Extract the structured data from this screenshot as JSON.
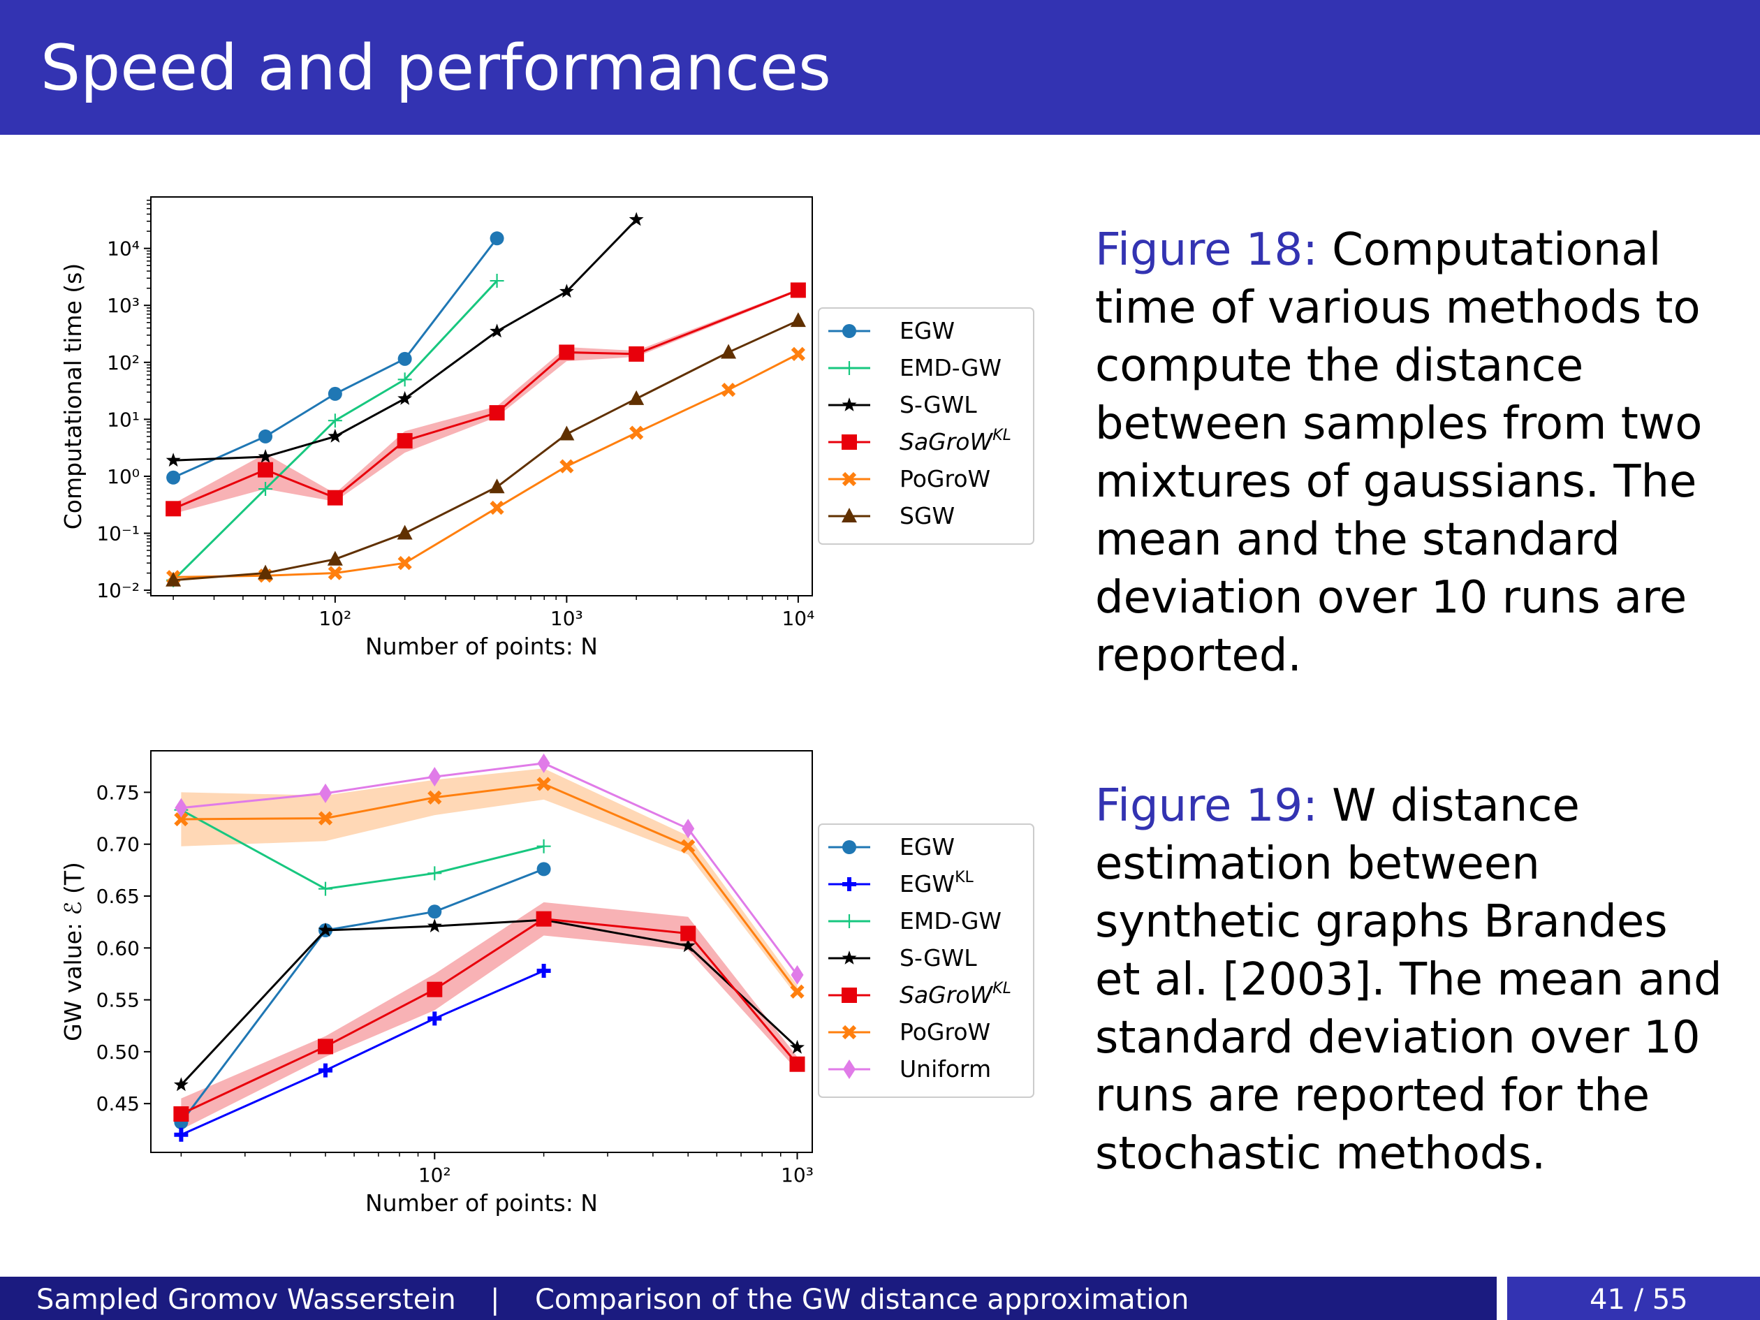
{
  "slide": {
    "title": "Speed and performances",
    "caption1_label": "Figure 18:",
    "caption1_text": "Computational time of various methods to compute the distance between samples from two mixtures of gaussians. The mean and the standard deviation over 10 runs are reported.",
    "caption2_label": "Figure 19:",
    "caption2_text": "W distance estimation between synthetic graphs Brandes et al. [2003]. The mean and standard deviation over 10 runs are reported for the stochastic methods."
  },
  "footer": {
    "left_title": "Sampled Gromov Wasserstein",
    "separator": "|",
    "section": "Comparison of the GW distance approximation",
    "page": "41 / 55"
  },
  "chart_data": [
    {
      "type": "line",
      "xlabel": "Number of points: N",
      "ylabel": "Computational time (s)",
      "x_scale": "log",
      "y_scale": "log",
      "xlim": [
        16,
        11500
      ],
      "ylim": [
        0.008,
        80000
      ],
      "x_ticks": [
        100,
        1000,
        10000
      ],
      "x_tick_labels": [
        "10²",
        "10³",
        "10⁴"
      ],
      "y_ticks": [
        0.01,
        0.1,
        1,
        10,
        100,
        1000,
        10000
      ],
      "y_tick_labels": [
        "10⁻²",
        "10⁻¹",
        "10⁰",
        "10¹",
        "10²",
        "10³",
        "10⁴"
      ],
      "legend_position": "right outside",
      "series": [
        {
          "name": "EGW",
          "color": "#1f77b4",
          "marker": "circle",
          "x": [
            20,
            50,
            100,
            200,
            500
          ],
          "y": [
            0.95,
            5,
            28,
            115,
            15000
          ]
        },
        {
          "name": "EMD-GW",
          "color": "#17c77f",
          "marker": "plus",
          "x": [
            20,
            50,
            100,
            200,
            500
          ],
          "y": [
            0.015,
            0.6,
            9.5,
            50,
            2700
          ]
        },
        {
          "name": "S-GWL",
          "color": "#000000",
          "marker": "star",
          "x": [
            20,
            50,
            100,
            200,
            500,
            1000,
            2000
          ],
          "y": [
            1.9,
            2.2,
            5,
            23,
            350,
            1750,
            32000
          ]
        },
        {
          "name": "SaGroW^KL",
          "color": "#e8000b",
          "marker": "square",
          "band": true,
          "x": [
            20,
            50,
            100,
            200,
            500,
            1000,
            2000,
            10000
          ],
          "y": [
            0.27,
            1.3,
            0.42,
            4.2,
            13,
            150,
            140,
            1850
          ],
          "y_low": [
            0.22,
            0.6,
            0.36,
            2.6,
            11,
            105,
            125,
            1750
          ],
          "y_high": [
            0.33,
            2.5,
            0.5,
            6.2,
            17,
            185,
            160,
            1950
          ]
        },
        {
          "name": "PoGroW",
          "color": "#ff7f0e",
          "marker": "x",
          "x": [
            20,
            50,
            100,
            200,
            500,
            1000,
            2000,
            5000,
            10000
          ],
          "y": [
            0.017,
            0.018,
            0.02,
            0.03,
            0.28,
            1.5,
            5.8,
            33,
            140
          ]
        },
        {
          "name": "SGW",
          "color": "#603000",
          "marker": "triangle",
          "x": [
            20,
            50,
            100,
            200,
            500,
            1000,
            2000,
            5000,
            10000
          ],
          "y": [
            0.015,
            0.02,
            0.035,
            0.1,
            0.65,
            5.5,
            23,
            150,
            540
          ]
        }
      ]
    },
    {
      "type": "line",
      "xlabel": "Number of points: N",
      "ylabel": "GW value: ℰ (T)",
      "x_scale": "log",
      "y_scale": "linear",
      "xlim": [
        16.5,
        1100
      ],
      "ylim": [
        0.403,
        0.79
      ],
      "x_ticks": [
        100,
        1000
      ],
      "x_tick_labels": [
        "10²",
        "10³"
      ],
      "y_ticks": [
        0.45,
        0.5,
        0.55,
        0.6,
        0.65,
        0.7,
        0.75
      ],
      "y_tick_labels": [
        "0.45",
        "0.50",
        "0.55",
        "0.60",
        "0.65",
        "0.70",
        "0.75"
      ],
      "legend_position": "right outside",
      "series": [
        {
          "name": "EGW",
          "color": "#1f77b4",
          "marker": "circle",
          "x": [
            20,
            50,
            100,
            200
          ],
          "y": [
            0.432,
            0.617,
            0.635,
            0.676
          ]
        },
        {
          "name": "EGW^KL",
          "color": "#0000ff",
          "marker": "plus-bold",
          "x": [
            20,
            50,
            100,
            200
          ],
          "y": [
            0.42,
            0.482,
            0.532,
            0.578
          ]
        },
        {
          "name": "EMD-GW",
          "color": "#17c77f",
          "marker": "plus",
          "x": [
            20,
            50,
            100,
            200
          ],
          "y": [
            0.733,
            0.657,
            0.672,
            0.698
          ]
        },
        {
          "name": "S-GWL",
          "color": "#000000",
          "marker": "star",
          "x": [
            20,
            50,
            100,
            200,
            500,
            1000
          ],
          "y": [
            0.468,
            0.617,
            0.621,
            0.627,
            0.602,
            0.504
          ]
        },
        {
          "name": "SaGroW^KL",
          "color": "#e8000b",
          "marker": "square",
          "band": true,
          "x": [
            20,
            50,
            100,
            200,
            500,
            1000
          ],
          "y": [
            0.44,
            0.505,
            0.56,
            0.628,
            0.614,
            0.488
          ],
          "y_low": [
            0.425,
            0.495,
            0.54,
            0.612,
            0.598,
            0.482
          ],
          "y_high": [
            0.455,
            0.515,
            0.575,
            0.644,
            0.63,
            0.495
          ]
        },
        {
          "name": "PoGroW",
          "color": "#ff7f0e",
          "marker": "x",
          "band": true,
          "x": [
            20,
            50,
            100,
            200,
            500,
            1000
          ],
          "y": [
            0.724,
            0.725,
            0.745,
            0.758,
            0.698,
            0.558
          ],
          "y_low": [
            0.698,
            0.703,
            0.728,
            0.743,
            0.69,
            0.553
          ],
          "y_high": [
            0.75,
            0.747,
            0.762,
            0.773,
            0.708,
            0.564
          ]
        },
        {
          "name": "Uniform",
          "color": "#e07be8",
          "marker": "diamond",
          "x": [
            20,
            50,
            100,
            200,
            500,
            1000
          ],
          "y": [
            0.735,
            0.749,
            0.765,
            0.778,
            0.715,
            0.574
          ]
        }
      ]
    }
  ]
}
